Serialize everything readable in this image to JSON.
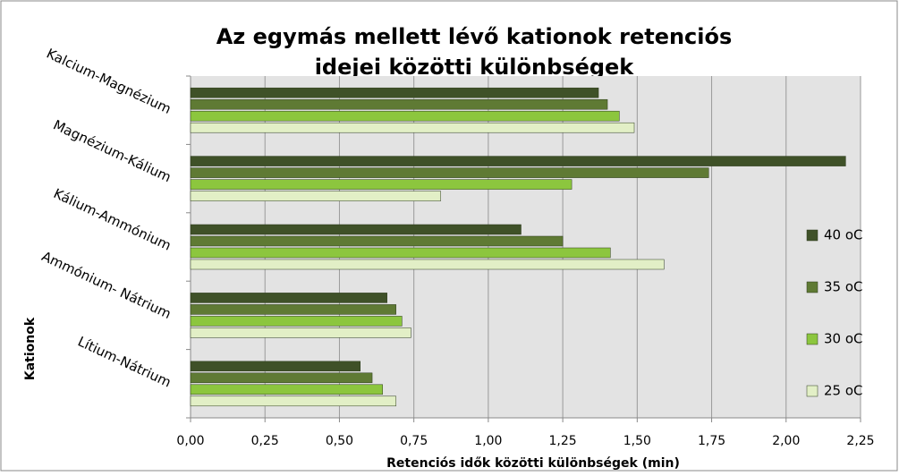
{
  "chart_data": {
    "type": "bar",
    "orientation": "horizontal",
    "title": "Az egymás mellett lévő kationok retenciós idejei közötti különbségek",
    "x_label": "Retenciós idők közötti különbségek (min)",
    "y_label": "Kationok",
    "categories": [
      "Kalcium-Magnézium",
      "Magnézium-Kálium",
      "Kálium-Ammónium",
      "Ammónium- Nátrium",
      "Lítium-Nátrium"
    ],
    "series": [
      {
        "name": "40 oC",
        "color": "#3f5128",
        "values": [
          1.37,
          2.2,
          1.11,
          0.66,
          0.57
        ]
      },
      {
        "name": "35 oC",
        "color": "#5f7a34",
        "values": [
          1.4,
          1.74,
          1.25,
          0.69,
          0.61
        ]
      },
      {
        "name": "30 oC",
        "color": "#8cc63e",
        "values": [
          1.44,
          1.28,
          1.41,
          0.71,
          0.645
        ]
      },
      {
        "name": "25 oC",
        "color": "#e2efc6",
        "values": [
          1.49,
          0.84,
          1.59,
          0.74,
          0.69
        ]
      }
    ],
    "xlim": [
      0,
      2.25
    ],
    "xticks": [
      {
        "value": 0,
        "label": "0,00"
      },
      {
        "value": 0.25,
        "label": "0,25"
      },
      {
        "value": 0.5,
        "label": "0,50"
      },
      {
        "value": 0.75,
        "label": "0,75"
      },
      {
        "value": 1,
        "label": "1,00"
      },
      {
        "value": 1.25,
        "label": "1,25"
      },
      {
        "value": 1.5,
        "label": "1,50"
      },
      {
        "value": 1.75,
        "label": "1,75"
      },
      {
        "value": 2,
        "label": "2,00"
      },
      {
        "value": 2.25,
        "label": "2,25"
      }
    ],
    "grid": true,
    "legend": "right"
  }
}
